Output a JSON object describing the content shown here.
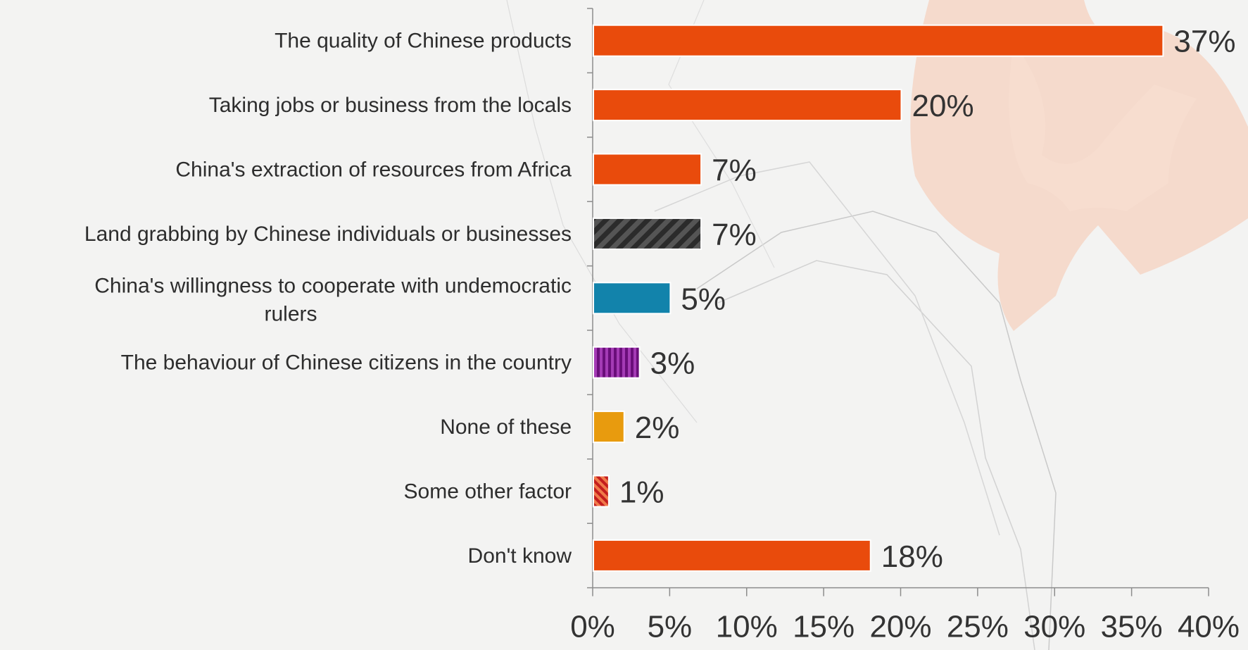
{
  "chart_data": {
    "type": "bar",
    "orientation": "horizontal",
    "categories": [
      "The quality of Chinese products",
      "Taking jobs or business from the locals",
      "China's extraction of resources from Africa",
      "Land grabbing by Chinese individuals or businesses",
      "China's willingness to cooperate with undemocratic rulers",
      "The behaviour of Chinese citizens in the country",
      "None of these",
      "Some other factor",
      "Don't know"
    ],
    "values": [
      37,
      20,
      7,
      7,
      5,
      3,
      2,
      1,
      18
    ],
    "value_labels": [
      "37%",
      "20%",
      "7%",
      "7%",
      "5%",
      "3%",
      "2%",
      "1%",
      "18%"
    ],
    "bar_colors": [
      "#e94b0c",
      "#e94b0c",
      "#e94b0c",
      "#3a3a3a",
      "#1283ab",
      "#7a1f8a",
      "#e89b0e",
      "#d23a1e",
      "#e94b0c"
    ],
    "bar_patterns": [
      "solid",
      "solid",
      "solid",
      "diagonal-stripes",
      "solid",
      "vertical-stripes",
      "solid",
      "diagonal-stripes",
      "solid"
    ],
    "xlim": [
      0,
      40
    ],
    "xticks": [
      "0%",
      "5%",
      "10%",
      "15%",
      "20%",
      "25%",
      "30%",
      "35%",
      "40%"
    ],
    "grid": false,
    "legend": "none"
  },
  "colors": {
    "background": "#f3f3f2",
    "accent": "#e94b0c",
    "axis": "#8c8c8c",
    "decoration": "#f5c4ad"
  }
}
